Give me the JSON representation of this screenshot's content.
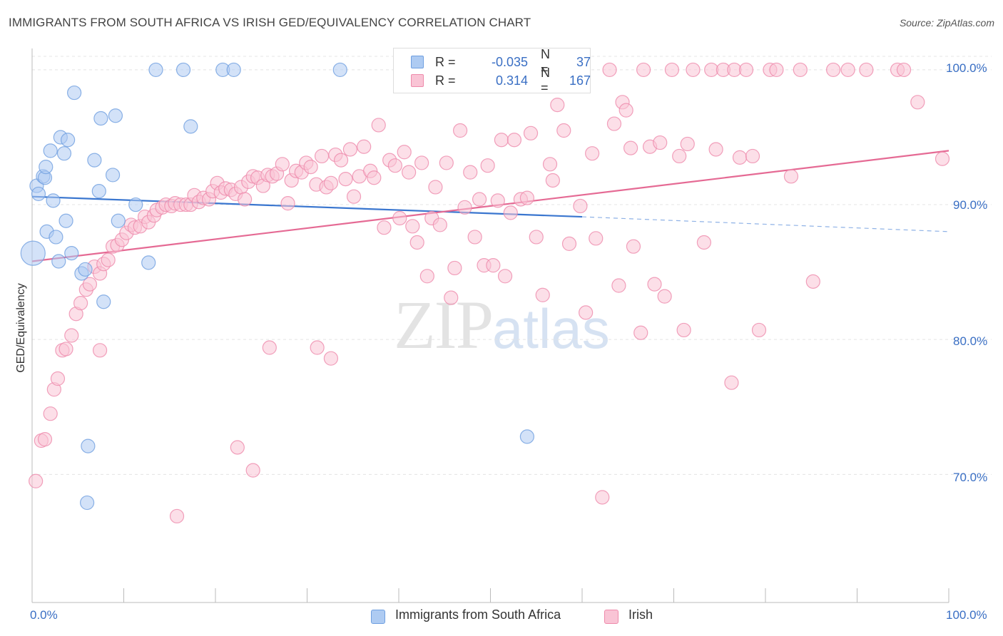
{
  "title": "IMMIGRANTS FROM SOUTH AFRICA VS IRISH GED/EQUIVALENCY CORRELATION CHART",
  "source": "Source: ZipAtlas.com",
  "watermark": {
    "zip": "ZIP",
    "atlas": "atlas"
  },
  "legend": {
    "rows": [
      {
        "r_label": "R =",
        "r_value": "-0.035",
        "n_label": "N =",
        "n_value": "37",
        "color": "#aecbf2",
        "border": "#6f9fe0"
      },
      {
        "r_label": "R =",
        "r_value": "0.314",
        "n_label": "N =",
        "n_value": "167",
        "color": "#f9c4d5",
        "border": "#ee8aab"
      }
    ]
  },
  "bottom_legend": {
    "series1": "Immigrants from South Africa",
    "series2": "Irish"
  },
  "axes": {
    "ylabel": "GED/Equivalency",
    "x_min_label": "0.0%",
    "x_max_label": "100.0%",
    "y_ticks": [
      "100.0%",
      "90.0%",
      "80.0%",
      "70.0%"
    ]
  },
  "chart_data": {
    "type": "scatter",
    "title": "IMMIGRANTS FROM SOUTH AFRICA VS IRISH GED/EQUIVALENCY CORRELATION CHART",
    "xlabel": "",
    "ylabel": "GED/Equivalency",
    "xlim": [
      0,
      100
    ],
    "ylim": [
      60.5,
      101
    ],
    "y_ticks": [
      70,
      80,
      90,
      100
    ],
    "grid": true,
    "legend_placement": "top-center",
    "series": [
      {
        "name": "Immigrants from South Africa",
        "color": "#6f9fe0",
        "fill": "#aecbf2",
        "trend": {
          "x0": 0,
          "y0": 90.6,
          "x1": 60,
          "y1": 89.1,
          "dashed_to_x": 100,
          "dashed_y": 88.0
        },
        "points": [
          [
            0.1,
            86.4
          ],
          [
            0.5,
            91.4
          ],
          [
            0.7,
            90.8
          ],
          [
            1.2,
            92.1
          ],
          [
            1.4,
            92.0
          ],
          [
            1.5,
            92.8
          ],
          [
            1.6,
            88.0
          ],
          [
            2.0,
            94.0
          ],
          [
            2.3,
            90.3
          ],
          [
            2.6,
            87.6
          ],
          [
            2.9,
            85.8
          ],
          [
            3.1,
            95.0
          ],
          [
            3.5,
            93.8
          ],
          [
            3.7,
            88.8
          ],
          [
            3.9,
            94.8
          ],
          [
            4.3,
            86.4
          ],
          [
            4.6,
            98.3
          ],
          [
            5.4,
            84.9
          ],
          [
            5.8,
            85.2
          ],
          [
            6.1,
            72.1
          ],
          [
            6.0,
            67.9
          ],
          [
            6.8,
            93.3
          ],
          [
            7.3,
            91.0
          ],
          [
            7.5,
            96.4
          ],
          [
            7.8,
            82.8
          ],
          [
            8.8,
            92.2
          ],
          [
            9.1,
            96.6
          ],
          [
            9.4,
            88.8
          ],
          [
            11.3,
            90.0
          ],
          [
            12.7,
            85.7
          ],
          [
            13.5,
            100
          ],
          [
            16.5,
            100
          ],
          [
            17.3,
            95.8
          ],
          [
            20.8,
            100
          ],
          [
            22.0,
            100
          ],
          [
            33.6,
            100
          ],
          [
            54.0,
            72.8
          ]
        ]
      },
      {
        "name": "Irish",
        "color": "#ee8aab",
        "fill": "#f9c4d5",
        "trend": {
          "x0": 0,
          "y0": 85.8,
          "x1": 100,
          "y1": 94.0
        },
        "points": [
          [
            0.4,
            69.5
          ],
          [
            1.0,
            72.5
          ],
          [
            1.4,
            72.6
          ],
          [
            2.0,
            74.5
          ],
          [
            2.4,
            76.3
          ],
          [
            2.8,
            77.1
          ],
          [
            3.3,
            79.2
          ],
          [
            3.7,
            79.3
          ],
          [
            4.3,
            80.3
          ],
          [
            4.8,
            81.9
          ],
          [
            5.3,
            82.7
          ],
          [
            5.9,
            83.7
          ],
          [
            6.3,
            84.1
          ],
          [
            6.8,
            85.4
          ],
          [
            7.4,
            84.9
          ],
          [
            7.8,
            85.6
          ],
          [
            8.3,
            85.9
          ],
          [
            8.8,
            86.9
          ],
          [
            9.3,
            87.0
          ],
          [
            9.8,
            87.4
          ],
          [
            10.3,
            87.9
          ],
          [
            10.8,
            88.5
          ],
          [
            11.2,
            88.3
          ],
          [
            11.8,
            88.4
          ],
          [
            12.3,
            89.1
          ],
          [
            12.7,
            88.7
          ],
          [
            13.3,
            89.2
          ],
          [
            13.6,
            89.6
          ],
          [
            14.2,
            89.8
          ],
          [
            14.6,
            90.0
          ],
          [
            15.2,
            89.9
          ],
          [
            15.6,
            90.1
          ],
          [
            16.2,
            90.0
          ],
          [
            16.8,
            90.0
          ],
          [
            17.3,
            90.0
          ],
          [
            17.7,
            90.7
          ],
          [
            18.2,
            90.2
          ],
          [
            18.7,
            90.5
          ],
          [
            19.3,
            90.4
          ],
          [
            19.7,
            91.0
          ],
          [
            20.2,
            91.6
          ],
          [
            20.6,
            90.9
          ],
          [
            21.1,
            91.2
          ],
          [
            21.7,
            91.1
          ],
          [
            22.2,
            90.8
          ],
          [
            22.8,
            91.3
          ],
          [
            23.2,
            90.4
          ],
          [
            23.6,
            91.7
          ],
          [
            24.1,
            92.1
          ],
          [
            24.6,
            92.0
          ],
          [
            25.2,
            91.4
          ],
          [
            25.7,
            92.2
          ],
          [
            26.2,
            92.1
          ],
          [
            26.7,
            92.3
          ],
          [
            27.3,
            93.0
          ],
          [
            27.9,
            90.1
          ],
          [
            28.3,
            91.8
          ],
          [
            28.8,
            92.5
          ],
          [
            29.4,
            92.4
          ],
          [
            29.9,
            93.1
          ],
          [
            30.4,
            92.8
          ],
          [
            31.0,
            91.5
          ],
          [
            31.6,
            93.6
          ],
          [
            32.1,
            91.3
          ],
          [
            32.6,
            91.6
          ],
          [
            33.1,
            93.7
          ],
          [
            33.7,
            93.3
          ],
          [
            34.2,
            91.9
          ],
          [
            34.7,
            94.1
          ],
          [
            35.1,
            90.6
          ],
          [
            35.7,
            92.1
          ],
          [
            36.2,
            94.3
          ],
          [
            36.9,
            92.5
          ],
          [
            37.3,
            92.0
          ],
          [
            37.8,
            95.9
          ],
          [
            38.4,
            88.3
          ],
          [
            39.0,
            93.3
          ],
          [
            39.6,
            92.9
          ],
          [
            40.1,
            89.0
          ],
          [
            40.6,
            93.9
          ],
          [
            41.1,
            92.4
          ],
          [
            41.5,
            88.4
          ],
          [
            42.0,
            87.2
          ],
          [
            42.5,
            93.1
          ],
          [
            43.1,
            84.7
          ],
          [
            43.6,
            89.0
          ],
          [
            44.0,
            91.3
          ],
          [
            44.5,
            88.5
          ],
          [
            45.2,
            93.1
          ],
          [
            45.7,
            83.1
          ],
          [
            46.1,
            85.3
          ],
          [
            46.7,
            95.5
          ],
          [
            47.2,
            89.8
          ],
          [
            47.8,
            92.4
          ],
          [
            48.3,
            87.6
          ],
          [
            48.8,
            90.4
          ],
          [
            49.3,
            85.5
          ],
          [
            49.7,
            92.9
          ],
          [
            50.3,
            85.5
          ],
          [
            50.8,
            90.3
          ],
          [
            51.2,
            94.8
          ],
          [
            51.6,
            84.7
          ],
          [
            52.2,
            89.4
          ],
          [
            52.6,
            94.8
          ],
          [
            53.3,
            90.4
          ],
          [
            54.0,
            90.5
          ],
          [
            54.4,
            95.3
          ],
          [
            55.0,
            87.6
          ],
          [
            55.7,
            83.3
          ],
          [
            56.5,
            93.0
          ],
          [
            56.8,
            91.8
          ],
          [
            57.3,
            97.4
          ],
          [
            58.0,
            95.5
          ],
          [
            58.6,
            87.1
          ],
          [
            59.5,
            100
          ],
          [
            59.8,
            89.9
          ],
          [
            60.4,
            82.0
          ],
          [
            61.1,
            93.8
          ],
          [
            61.5,
            87.5
          ],
          [
            62.2,
            68.3
          ],
          [
            63.0,
            100
          ],
          [
            63.5,
            96.0
          ],
          [
            64.0,
            84.0
          ],
          [
            64.4,
            97.6
          ],
          [
            64.8,
            97.0
          ],
          [
            65.3,
            94.2
          ],
          [
            65.6,
            86.9
          ],
          [
            66.4,
            80.5
          ],
          [
            66.7,
            100
          ],
          [
            67.4,
            94.3
          ],
          [
            67.9,
            84.1
          ],
          [
            68.5,
            94.6
          ],
          [
            69.0,
            83.2
          ],
          [
            69.8,
            100
          ],
          [
            70.6,
            93.6
          ],
          [
            71.1,
            80.7
          ],
          [
            71.5,
            94.5
          ],
          [
            72.1,
            100
          ],
          [
            73.3,
            87.2
          ],
          [
            74.1,
            100
          ],
          [
            74.6,
            94.1
          ],
          [
            75.4,
            100
          ],
          [
            76.3,
            76.8
          ],
          [
            76.6,
            100
          ],
          [
            77.2,
            93.5
          ],
          [
            77.9,
            100
          ],
          [
            78.6,
            93.6
          ],
          [
            79.3,
            80.7
          ],
          [
            80.5,
            100
          ],
          [
            81.2,
            100
          ],
          [
            82.8,
            92.1
          ],
          [
            83.8,
            100
          ],
          [
            85.2,
            84.3
          ],
          [
            87.4,
            100
          ],
          [
            89.0,
            100
          ],
          [
            91.0,
            100
          ],
          [
            94.4,
            100
          ],
          [
            95.1,
            100
          ],
          [
            96.6,
            97.6
          ],
          [
            99.3,
            93.4
          ],
          [
            7.4,
            79.2
          ],
          [
            15.8,
            66.9
          ],
          [
            22.4,
            72.0
          ],
          [
            24.1,
            70.3
          ],
          [
            25.9,
            79.4
          ],
          [
            31.1,
            79.4
          ],
          [
            32.6,
            78.6
          ]
        ]
      }
    ]
  }
}
